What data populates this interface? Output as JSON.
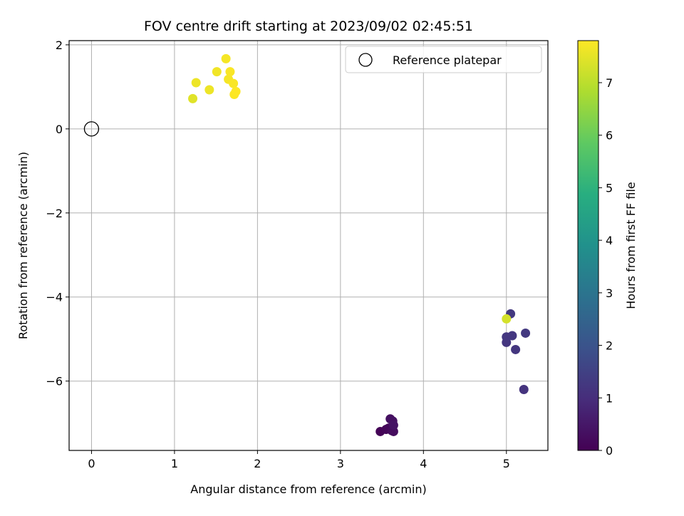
{
  "chart_data": {
    "type": "scatter",
    "title": "FOV centre drift starting at 2023/09/02 02:45:51",
    "xlabel": "Angular distance from reference (arcmin)",
    "ylabel": "Rotation from reference (arcmin)",
    "xlim": [
      -0.27,
      5.5
    ],
    "ylim": [
      -7.65,
      2.1
    ],
    "xticks": [
      0,
      1,
      2,
      3,
      4,
      5
    ],
    "yticks": [
      2,
      0,
      -2,
      -4,
      -6
    ],
    "xtick_labels": [
      "0",
      "1",
      "2",
      "3",
      "4",
      "5"
    ],
    "ytick_labels": [
      "2",
      "0",
      "−2",
      "−4",
      "−6"
    ],
    "grid": true,
    "legend": {
      "placement": "upper right",
      "entries": [
        {
          "label": "Reference platepar",
          "marker": "open-circle"
        }
      ]
    },
    "reference_point": {
      "x": 0,
      "y": 0
    },
    "colorbar": {
      "label": "Hours from first FF file",
      "colormap": "viridis",
      "range": [
        0,
        7.8
      ],
      "ticks": [
        0,
        1,
        2,
        3,
        4,
        5,
        6,
        7
      ],
      "tick_labels": [
        "0",
        "1",
        "2",
        "3",
        "4",
        "5",
        "6",
        "7"
      ]
    },
    "points": [
      {
        "x": 3.48,
        "y": -7.2,
        "hours": 0.05
      },
      {
        "x": 3.55,
        "y": -7.15,
        "hours": 0.1
      },
      {
        "x": 3.58,
        "y": -7.12,
        "hours": 0.15
      },
      {
        "x": 3.62,
        "y": -7.18,
        "hours": 0.2
      },
      {
        "x": 3.64,
        "y": -7.2,
        "hours": 0.25
      },
      {
        "x": 3.6,
        "y": -6.9,
        "hours": 0.3
      },
      {
        "x": 3.63,
        "y": -6.95,
        "hours": 0.35
      },
      {
        "x": 3.64,
        "y": -7.05,
        "hours": 0.4
      },
      {
        "x": 5.21,
        "y": -6.2,
        "hours": 1.15
      },
      {
        "x": 5.11,
        "y": -5.25,
        "hours": 1.2
      },
      {
        "x": 5.0,
        "y": -5.08,
        "hours": 1.2
      },
      {
        "x": 5.0,
        "y": -4.95,
        "hours": 1.25
      },
      {
        "x": 5.07,
        "y": -4.92,
        "hours": 1.25
      },
      {
        "x": 5.23,
        "y": -4.86,
        "hours": 1.3
      },
      {
        "x": 5.05,
        "y": -4.4,
        "hours": 1.3
      },
      {
        "x": 5.0,
        "y": -4.52,
        "hours": 7.3
      },
      {
        "x": 1.22,
        "y": 0.72,
        "hours": 7.45
      },
      {
        "x": 1.26,
        "y": 1.1,
        "hours": 7.6
      },
      {
        "x": 1.42,
        "y": 0.93,
        "hours": 7.6
      },
      {
        "x": 1.51,
        "y": 1.36,
        "hours": 7.65
      },
      {
        "x": 1.62,
        "y": 1.67,
        "hours": 7.7
      },
      {
        "x": 1.65,
        "y": 1.18,
        "hours": 7.7
      },
      {
        "x": 1.67,
        "y": 1.36,
        "hours": 7.75
      },
      {
        "x": 1.71,
        "y": 1.08,
        "hours": 7.75
      },
      {
        "x": 1.72,
        "y": 0.82,
        "hours": 7.78
      },
      {
        "x": 1.74,
        "y": 0.89,
        "hours": 7.8
      }
    ]
  }
}
